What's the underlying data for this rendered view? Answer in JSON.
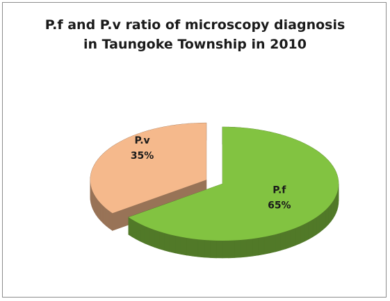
{
  "chart_data": {
    "type": "pie",
    "title": "P.f and P.v ratio of microscopy diagnosis in Taungoke Township in 2010",
    "categories": [
      "P.f",
      "P.v"
    ],
    "values": [
      65,
      35
    ],
    "value_labels": [
      "65%",
      "35%"
    ],
    "colors": [
      "#82c341",
      "#f5b98c"
    ],
    "three_d": true
  }
}
